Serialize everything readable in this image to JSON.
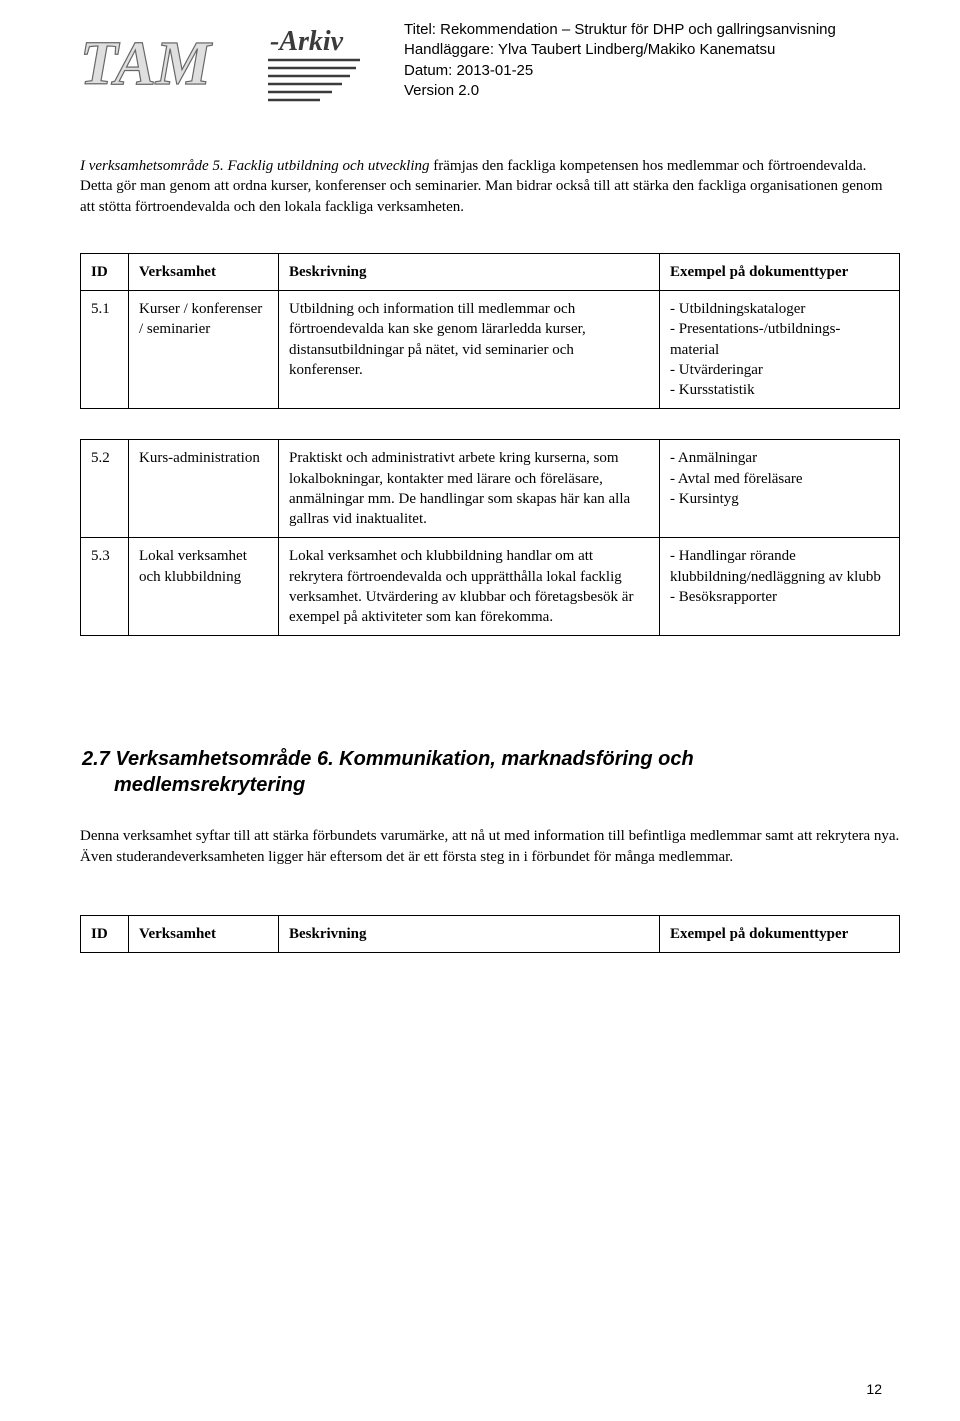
{
  "header": {
    "title_line": "Titel: Rekommendation – Struktur för DHP och gallringsanvisning",
    "handler_line": "Handläggare: Ylva Taubert Lindberg/Makiko Kanematsu",
    "date_line": "Datum: 2013-01-25",
    "version_line": "Version 2.0"
  },
  "logo": {
    "text_main": "TAM",
    "text_suffix": "-Arkiv",
    "main_color": "#a3a3a3",
    "stroke_color": "#5b5b5b"
  },
  "intro": {
    "lead": "I verksamhetsområde 5. Facklig utbildning och utveckling",
    "rest": " främjas den fackliga kompetensen hos medlemmar och förtroendevalda. Detta gör man genom att ordna kurser, konferenser och seminarier. Man bidrar också till att stärka den fackliga organisationen genom att stötta förtroendevalda och den lokala fackliga verksamheten."
  },
  "table_headers": {
    "id": "ID",
    "verksamhet": "Verksamhet",
    "beskrivning": "Beskrivning",
    "exempel": "Exempel på dokumenttyper"
  },
  "table1_rows": [
    {
      "id": "5.1",
      "verksamhet": "Kurser / konferenser / seminarier",
      "beskrivning": "Utbildning och information till medlemmar och förtroendevalda kan ske genom lärarledda kurser, distansutbildningar på nätet, vid seminarier och konferenser.",
      "exempel": "- Utbildningskataloger\n- Presentations-/utbildnings-material\n- Utvärderingar\n- Kursstatistik"
    }
  ],
  "table2_rows": [
    {
      "id": "5.2",
      "verksamhet": "Kurs-administration",
      "beskrivning": "Praktiskt och administrativt arbete kring kurserna, som lokalbokningar, kontakter med lärare och föreläsare, anmälningar mm. De handlingar som skapas här kan alla gallras vid inaktualitet.",
      "exempel": "- Anmälningar\n- Avtal med föreläsare\n- Kursintyg"
    },
    {
      "id": "5.3",
      "verksamhet": "Lokal verksamhet och klubbildning",
      "beskrivning": "Lokal verksamhet och klubbildning handlar om att rekrytera förtroendevalda och upprätthålla lokal facklig verksamhet. Utvärdering av klubbar och företagsbesök är exempel på aktiviteter som kan förekomma.",
      "exempel": "- Handlingar rörande klubbildning/nedläggning av klubb\n- Besöksrapporter"
    }
  ],
  "section2": {
    "heading_line1": "2.7 Verksamhetsområde 6. Kommunikation, marknadsföring och",
    "heading_line2": "medlemsrekrytering",
    "intro": "Denna verksamhet syftar till att stärka förbundets varumärke, att nå ut med information till befintliga medlemmar samt att rekrytera nya. Även studerandeverksamheten ligger här eftersom det är ett första steg in i förbundet för många medlemmar."
  },
  "page_number": "12"
}
